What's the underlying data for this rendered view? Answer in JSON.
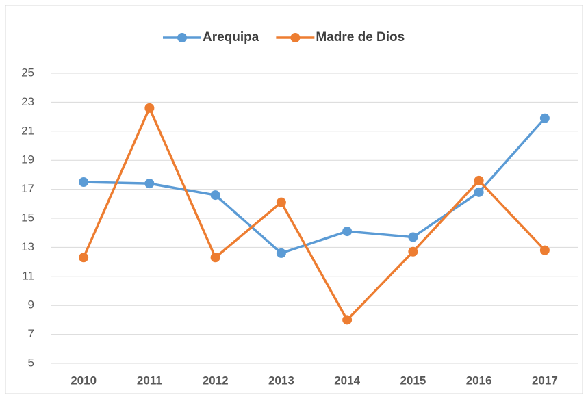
{
  "chart_data": {
    "type": "line",
    "categories": [
      "2010",
      "2011",
      "2012",
      "2013",
      "2014",
      "2015",
      "2016",
      "2017"
    ],
    "series": [
      {
        "name": "Arequipa",
        "color": "#5b9bd5",
        "values": [
          17.5,
          17.4,
          16.6,
          12.6,
          14.1,
          13.7,
          16.8,
          21.9
        ]
      },
      {
        "name": "Madre de Dios",
        "color": "#ed7d31",
        "values": [
          12.3,
          22.6,
          12.3,
          16.1,
          8.0,
          12.7,
          17.6,
          12.8
        ]
      }
    ],
    "ylim": [
      5,
      25
    ],
    "yticks": [
      5,
      7,
      9,
      11,
      13,
      15,
      17,
      19,
      21,
      23,
      25
    ],
    "grid": true,
    "legend": "top"
  }
}
